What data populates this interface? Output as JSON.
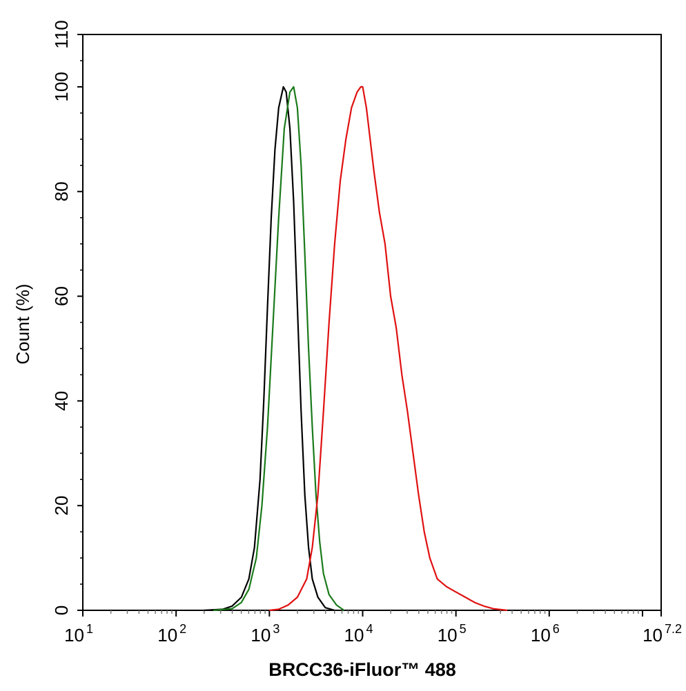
{
  "chart_data": {
    "type": "line",
    "title": "",
    "xlabel": "BRCC36-iFluor™ 488",
    "ylabel": "Count  (%)",
    "x_scale": "log",
    "xlim_log10": [
      1,
      7.2
    ],
    "ylim": [
      0,
      110
    ],
    "grid": false,
    "x_tick_labels": [
      {
        "base": "10",
        "exp": "1",
        "log10": 1
      },
      {
        "base": "10",
        "exp": "2",
        "log10": 2
      },
      {
        "base": "10",
        "exp": "3",
        "log10": 3
      },
      {
        "base": "10",
        "exp": "4",
        "log10": 4
      },
      {
        "base": "10",
        "exp": "5",
        "log10": 5
      },
      {
        "base": "10",
        "exp": "6",
        "log10": 6
      },
      {
        "base": "10",
        "exp": "7.2",
        "log10": 7.2
      }
    ],
    "y_ticks": [
      "0",
      "20",
      "40",
      "60",
      "80",
      "100",
      "110"
    ],
    "series": [
      {
        "color": "#000000",
        "points": [
          [
            2.3,
            0
          ],
          [
            2.5,
            0.2
          ],
          [
            2.6,
            0.8
          ],
          [
            2.7,
            2.5
          ],
          [
            2.78,
            6
          ],
          [
            2.84,
            12
          ],
          [
            2.9,
            25
          ],
          [
            2.94,
            40
          ],
          [
            2.98,
            58
          ],
          [
            3.02,
            75
          ],
          [
            3.06,
            88
          ],
          [
            3.1,
            96
          ],
          [
            3.15,
            100
          ],
          [
            3.18,
            99
          ],
          [
            3.22,
            92
          ],
          [
            3.26,
            78
          ],
          [
            3.3,
            58
          ],
          [
            3.34,
            38
          ],
          [
            3.38,
            22
          ],
          [
            3.42,
            12
          ],
          [
            3.46,
            6
          ],
          [
            3.52,
            2.5
          ],
          [
            3.6,
            0.5
          ],
          [
            3.7,
            0
          ]
        ]
      },
      {
        "color": "#1a7a1a",
        "points": [
          [
            2.4,
            0
          ],
          [
            2.6,
            0.3
          ],
          [
            2.7,
            1.5
          ],
          [
            2.78,
            4
          ],
          [
            2.86,
            10
          ],
          [
            2.92,
            20
          ],
          [
            2.98,
            35
          ],
          [
            3.04,
            55
          ],
          [
            3.1,
            75
          ],
          [
            3.16,
            92
          ],
          [
            3.22,
            99
          ],
          [
            3.26,
            100
          ],
          [
            3.3,
            96
          ],
          [
            3.34,
            85
          ],
          [
            3.38,
            68
          ],
          [
            3.42,
            50
          ],
          [
            3.46,
            35
          ],
          [
            3.5,
            22
          ],
          [
            3.54,
            13
          ],
          [
            3.58,
            7
          ],
          [
            3.64,
            3
          ],
          [
            3.72,
            1
          ],
          [
            3.8,
            0
          ]
        ]
      },
      {
        "color": "#e01010",
        "points": [
          [
            3.0,
            0
          ],
          [
            3.1,
            0.2
          ],
          [
            3.2,
            1
          ],
          [
            3.3,
            2.5
          ],
          [
            3.4,
            6
          ],
          [
            3.46,
            12
          ],
          [
            3.52,
            22
          ],
          [
            3.58,
            38
          ],
          [
            3.64,
            55
          ],
          [
            3.7,
            70
          ],
          [
            3.76,
            82
          ],
          [
            3.82,
            90
          ],
          [
            3.88,
            96
          ],
          [
            3.94,
            99
          ],
          [
            3.98,
            100
          ],
          [
            4.0,
            100
          ],
          [
            4.04,
            96
          ],
          [
            4.08,
            90
          ],
          [
            4.12,
            84
          ],
          [
            4.18,
            76
          ],
          [
            4.24,
            70
          ],
          [
            4.3,
            60
          ],
          [
            4.36,
            54
          ],
          [
            4.42,
            45
          ],
          [
            4.48,
            38
          ],
          [
            4.54,
            30
          ],
          [
            4.6,
            22
          ],
          [
            4.66,
            15
          ],
          [
            4.72,
            10
          ],
          [
            4.8,
            6
          ],
          [
            4.9,
            4.5
          ],
          [
            5.0,
            3.5
          ],
          [
            5.1,
            2.5
          ],
          [
            5.2,
            1.5
          ],
          [
            5.3,
            0.8
          ],
          [
            5.4,
            0.3
          ],
          [
            5.55,
            0
          ]
        ]
      }
    ]
  }
}
